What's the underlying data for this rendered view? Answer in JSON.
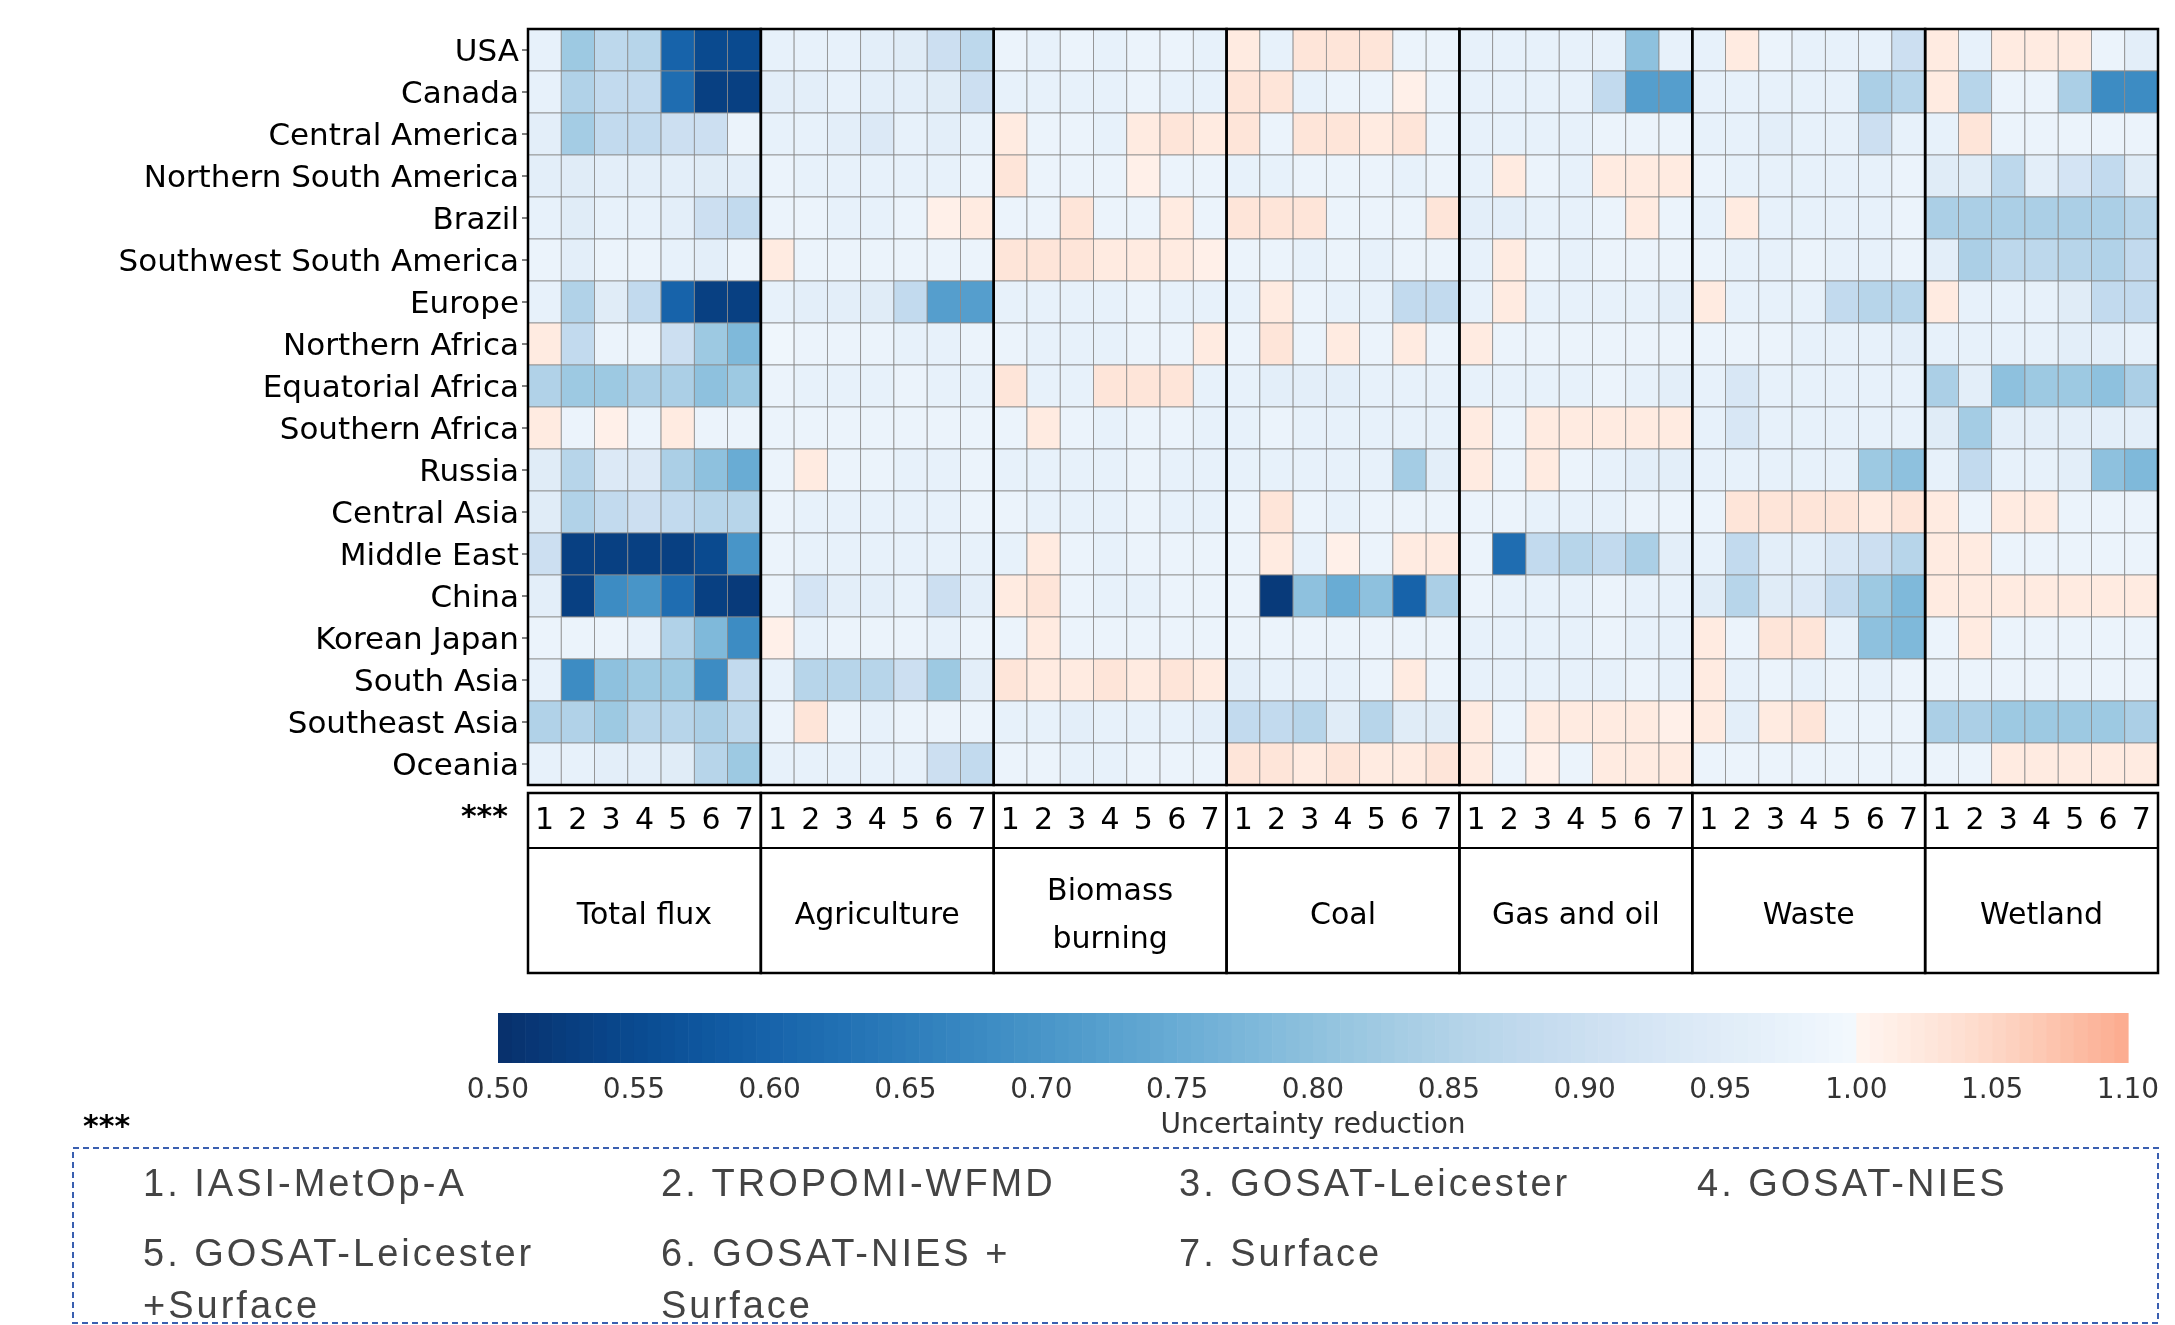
{
  "chart_data": {
    "type": "heatmap",
    "clabel": "Uncertainty reduction",
    "categories": [
      "1",
      "2",
      "3",
      "4",
      "5",
      "6",
      "7",
      "1",
      "2",
      "3",
      "4",
      "5",
      "6",
      "7",
      "1",
      "2",
      "3",
      "4",
      "5",
      "6",
      "7",
      "1",
      "2",
      "3",
      "4",
      "5",
      "6",
      "7",
      "1",
      "2",
      "3",
      "4",
      "5",
      "6",
      "7",
      "1",
      "2",
      "3",
      "4",
      "5",
      "6",
      "7",
      "1",
      "2",
      "3",
      "4",
      "5",
      "6",
      "7"
    ],
    "y_categories": [
      "USA",
      "Canada",
      "Central America",
      "Northern South America",
      "Brazil",
      "Southwest South America",
      "Europe",
      "Northern Africa",
      "Equatorial Africa",
      "Southern Africa",
      "Russia",
      "Central Asia",
      "Middle East",
      "China",
      "Korean Japan",
      "South Asia",
      "Southeast Asia",
      "Oceania"
    ],
    "clim": [
      0.5,
      1.1
    ],
    "cticks": [
      {
        "value": 0.5,
        "label": "0.50"
      },
      {
        "value": 0.55,
        "label": "0.55"
      },
      {
        "value": 0.6,
        "label": "0.60"
      },
      {
        "value": 0.65,
        "label": "0.65"
      },
      {
        "value": 0.7,
        "label": "0.70"
      },
      {
        "value": 0.75,
        "label": "0.75"
      },
      {
        "value": 0.8,
        "label": "0.80"
      },
      {
        "value": 0.85,
        "label": "0.85"
      },
      {
        "value": 0.9,
        "label": "0.90"
      },
      {
        "value": 0.95,
        "label": "0.95"
      },
      {
        "value": 1.0,
        "label": "1.00"
      },
      {
        "value": 1.05,
        "label": "1.05"
      },
      {
        "value": 1.1,
        "label": "1.10"
      }
    ],
    "cells": [
      [
        0.97,
        0.82,
        0.87,
        0.86,
        0.6,
        0.55,
        0.55,
        0.97,
        0.97,
        0.97,
        0.96,
        0.95,
        0.9,
        0.87,
        0.98,
        0.97,
        0.98,
        0.97,
        0.98,
        0.98,
        0.97,
        1.02,
        0.97,
        1.03,
        1.03,
        1.03,
        0.98,
        0.98,
        0.97,
        0.97,
        0.97,
        0.97,
        0.97,
        0.8,
        0.97,
        0.97,
        1.02,
        0.98,
        0.97,
        0.97,
        0.97,
        0.9,
        1.02,
        0.97,
        1.02,
        1.02,
        1.02,
        0.98,
        0.96
      ],
      [
        0.97,
        0.85,
        0.88,
        0.88,
        0.62,
        0.53,
        0.53,
        0.96,
        0.96,
        0.97,
        0.96,
        0.96,
        0.95,
        0.9,
        0.97,
        0.97,
        0.97,
        0.97,
        0.98,
        0.97,
        0.97,
        1.03,
        1.03,
        0.97,
        0.98,
        0.98,
        1.01,
        0.98,
        0.97,
        0.97,
        0.97,
        0.97,
        0.88,
        0.72,
        0.72,
        0.97,
        0.97,
        0.97,
        0.97,
        0.97,
        0.84,
        0.86,
        1.02,
        0.86,
        0.98,
        0.98,
        0.84,
        0.68,
        0.68
      ],
      [
        0.96,
        0.83,
        0.88,
        0.88,
        0.9,
        0.9,
        0.98,
        0.97,
        0.97,
        0.96,
        0.94,
        0.97,
        0.96,
        0.97,
        1.02,
        0.98,
        0.98,
        0.97,
        1.02,
        1.03,
        1.02,
        1.03,
        0.98,
        1.03,
        1.03,
        1.02,
        1.03,
        0.98,
        0.97,
        0.97,
        0.97,
        0.97,
        0.98,
        0.98,
        0.98,
        0.97,
        0.97,
        0.96,
        0.97,
        0.97,
        0.9,
        0.97,
        0.97,
        1.03,
        0.98,
        0.98,
        0.98,
        0.98,
        0.98
      ],
      [
        0.96,
        0.95,
        0.96,
        0.96,
        0.96,
        0.95,
        0.96,
        0.98,
        0.97,
        0.97,
        0.97,
        0.97,
        0.97,
        0.98,
        1.03,
        0.98,
        0.98,
        0.98,
        1.01,
        0.98,
        0.98,
        0.97,
        0.97,
        0.98,
        0.98,
        0.98,
        0.97,
        0.98,
        0.97,
        1.02,
        0.98,
        0.97,
        1.02,
        1.02,
        1.02,
        0.98,
        0.97,
        0.97,
        0.97,
        0.97,
        0.97,
        0.98,
        0.95,
        0.95,
        0.87,
        0.96,
        0.92,
        0.88,
        0.95
      ],
      [
        0.97,
        0.95,
        0.97,
        0.97,
        0.96,
        0.9,
        0.88,
        0.98,
        0.98,
        0.97,
        0.97,
        0.98,
        1.01,
        1.02,
        0.98,
        0.98,
        1.03,
        0.98,
        0.98,
        1.02,
        0.98,
        1.03,
        1.03,
        1.03,
        0.98,
        0.98,
        0.98,
        1.03,
        0.96,
        0.96,
        0.97,
        0.97,
        0.98,
        1.02,
        0.98,
        0.97,
        1.02,
        0.97,
        0.97,
        0.97,
        0.97,
        0.98,
        0.84,
        0.84,
        0.84,
        0.84,
        0.84,
        0.84,
        0.86
      ],
      [
        0.98,
        0.96,
        0.98,
        0.98,
        0.97,
        0.96,
        0.98,
        1.02,
        0.98,
        0.98,
        0.98,
        0.98,
        0.98,
        0.98,
        1.03,
        1.03,
        1.03,
        1.02,
        1.02,
        1.02,
        1.01,
        0.98,
        0.98,
        0.97,
        0.98,
        0.97,
        0.98,
        0.98,
        0.97,
        1.02,
        0.98,
        0.97,
        0.98,
        0.98,
        0.98,
        0.98,
        0.97,
        0.97,
        0.98,
        0.97,
        0.97,
        0.98,
        0.96,
        0.84,
        0.87,
        0.87,
        0.86,
        0.85,
        0.88
      ],
      [
        0.97,
        0.85,
        0.95,
        0.88,
        0.6,
        0.53,
        0.53,
        0.97,
        0.96,
        0.96,
        0.95,
        0.88,
        0.72,
        0.72,
        0.97,
        0.97,
        0.97,
        0.97,
        0.98,
        0.97,
        0.97,
        0.97,
        1.02,
        0.98,
        0.97,
        0.97,
        0.88,
        0.88,
        0.97,
        1.02,
        0.97,
        0.97,
        0.97,
        0.97,
        0.96,
        1.02,
        0.97,
        0.97,
        0.97,
        0.88,
        0.86,
        0.86,
        1.02,
        0.97,
        0.97,
        0.97,
        0.95,
        0.88,
        0.88
      ],
      [
        1.02,
        0.88,
        0.98,
        0.98,
        0.9,
        0.82,
        0.78,
        0.99,
        0.98,
        0.98,
        0.98,
        0.97,
        0.97,
        0.98,
        0.98,
        0.97,
        0.97,
        0.97,
        0.98,
        0.98,
        1.02,
        0.98,
        1.03,
        0.98,
        1.02,
        0.98,
        1.02,
        0.98,
        1.02,
        0.98,
        0.98,
        0.98,
        0.98,
        0.98,
        0.98,
        0.98,
        0.98,
        0.98,
        0.97,
        0.97,
        0.97,
        0.96,
        0.97,
        0.97,
        0.97,
        0.97,
        0.96,
        0.96,
        0.97
      ],
      [
        0.85,
        0.82,
        0.82,
        0.84,
        0.84,
        0.8,
        0.82,
        0.98,
        0.97,
        0.97,
        0.97,
        0.98,
        0.97,
        0.97,
        1.03,
        0.97,
        0.97,
        1.03,
        1.03,
        1.03,
        0.97,
        0.97,
        0.96,
        0.96,
        0.96,
        0.97,
        0.97,
        0.97,
        0.97,
        0.97,
        0.97,
        0.97,
        0.98,
        0.97,
        0.96,
        0.97,
        0.93,
        0.97,
        0.97,
        0.97,
        0.97,
        0.97,
        0.84,
        0.96,
        0.8,
        0.82,
        0.82,
        0.8,
        0.84
      ],
      [
        1.02,
        0.98,
        1.01,
        0.98,
        1.02,
        0.98,
        0.98,
        0.98,
        0.98,
        0.98,
        0.98,
        0.98,
        0.98,
        0.98,
        0.98,
        1.02,
        0.98,
        0.97,
        0.98,
        0.98,
        0.97,
        0.97,
        0.98,
        0.97,
        0.97,
        0.97,
        0.97,
        0.97,
        1.02,
        0.98,
        1.02,
        1.02,
        1.02,
        1.02,
        1.02,
        0.97,
        0.93,
        0.97,
        0.97,
        0.97,
        0.97,
        0.97,
        0.95,
        0.83,
        0.96,
        0.96,
        0.96,
        0.96,
        0.96
      ],
      [
        0.95,
        0.86,
        0.94,
        0.94,
        0.84,
        0.8,
        0.75,
        0.98,
        1.02,
        0.98,
        0.98,
        0.97,
        0.97,
        0.98,
        0.97,
        0.97,
        0.97,
        0.97,
        0.98,
        0.97,
        0.97,
        0.97,
        0.97,
        0.97,
        0.97,
        0.97,
        0.83,
        0.96,
        1.02,
        0.98,
        1.02,
        0.98,
        0.97,
        0.96,
        0.96,
        0.97,
        0.97,
        0.97,
        0.97,
        0.97,
        0.82,
        0.8,
        0.97,
        0.88,
        0.97,
        0.97,
        0.96,
        0.8,
        0.78
      ],
      [
        0.95,
        0.85,
        0.88,
        0.9,
        0.88,
        0.86,
        0.86,
        0.98,
        0.97,
        0.97,
        0.97,
        0.97,
        0.97,
        0.98,
        0.98,
        0.97,
        0.97,
        0.97,
        0.98,
        0.97,
        0.97,
        0.98,
        1.03,
        0.98,
        0.97,
        0.98,
        0.98,
        0.98,
        0.98,
        0.98,
        0.97,
        0.97,
        0.97,
        0.98,
        0.98,
        0.98,
        1.03,
        1.03,
        1.03,
        1.03,
        1.02,
        1.03,
        1.02,
        0.98,
        1.02,
        1.02,
        0.98,
        0.98,
        0.98
      ],
      [
        0.9,
        0.53,
        0.53,
        0.53,
        0.53,
        0.55,
        0.7,
        0.98,
        0.97,
        0.97,
        0.97,
        0.97,
        0.97,
        0.97,
        0.97,
        1.02,
        0.98,
        0.97,
        0.98,
        0.98,
        0.98,
        0.98,
        1.02,
        0.97,
        1.01,
        0.98,
        1.02,
        1.02,
        0.98,
        0.62,
        0.88,
        0.86,
        0.88,
        0.84,
        0.96,
        0.97,
        0.88,
        0.96,
        0.96,
        0.93,
        0.9,
        0.86,
        1.02,
        1.02,
        0.98,
        0.98,
        0.98,
        0.98,
        0.98
      ],
      [
        0.96,
        0.53,
        0.68,
        0.7,
        0.62,
        0.53,
        0.52,
        0.98,
        0.92,
        0.96,
        0.96,
        0.97,
        0.9,
        0.96,
        1.02,
        1.03,
        0.98,
        0.97,
        0.97,
        0.98,
        0.98,
        0.98,
        0.52,
        0.8,
        0.75,
        0.8,
        0.6,
        0.84,
        0.98,
        0.97,
        0.97,
        0.97,
        0.98,
        0.97,
        0.97,
        0.95,
        0.86,
        0.95,
        0.94,
        0.88,
        0.82,
        0.78,
        1.02,
        1.02,
        1.02,
        1.02,
        1.02,
        1.02,
        1.02
      ],
      [
        0.98,
        0.98,
        0.98,
        0.97,
        0.85,
        0.78,
        0.68,
        1.01,
        0.97,
        0.98,
        0.98,
        0.98,
        0.97,
        0.98,
        0.98,
        1.02,
        0.98,
        0.98,
        0.98,
        0.98,
        0.98,
        0.98,
        0.98,
        0.98,
        0.98,
        0.98,
        0.98,
        0.98,
        0.97,
        0.97,
        0.97,
        0.97,
        0.98,
        0.97,
        0.97,
        1.02,
        0.98,
        1.03,
        1.03,
        0.97,
        0.8,
        0.78,
        0.98,
        1.02,
        0.98,
        0.98,
        0.98,
        0.98,
        0.98
      ],
      [
        0.97,
        0.68,
        0.8,
        0.82,
        0.82,
        0.68,
        0.88,
        0.97,
        0.86,
        0.86,
        0.86,
        0.9,
        0.82,
        0.96,
        1.03,
        1.02,
        1.02,
        1.03,
        1.02,
        1.03,
        1.02,
        0.96,
        0.97,
        0.97,
        0.97,
        0.98,
        1.02,
        0.98,
        0.97,
        0.97,
        0.97,
        0.97,
        0.97,
        0.98,
        0.97,
        1.02,
        0.97,
        0.98,
        0.97,
        0.98,
        0.97,
        0.98,
        0.98,
        0.98,
        0.98,
        0.98,
        0.98,
        0.98,
        0.98
      ],
      [
        0.85,
        0.85,
        0.82,
        0.86,
        0.86,
        0.84,
        0.87,
        0.98,
        1.03,
        0.98,
        0.97,
        0.98,
        0.98,
        0.98,
        0.97,
        0.97,
        0.96,
        0.97,
        0.97,
        0.97,
        0.96,
        0.88,
        0.88,
        0.86,
        0.95,
        0.86,
        0.95,
        0.95,
        1.02,
        0.98,
        1.02,
        1.02,
        1.02,
        1.02,
        1.01,
        1.02,
        0.96,
        1.02,
        1.03,
        0.98,
        0.98,
        0.98,
        0.84,
        0.84,
        0.82,
        0.82,
        0.82,
        0.82,
        0.84
      ],
      [
        0.97,
        0.97,
        0.96,
        0.96,
        0.95,
        0.86,
        0.82,
        0.97,
        0.97,
        0.97,
        0.97,
        0.97,
        0.9,
        0.88,
        0.98,
        0.98,
        0.97,
        0.97,
        0.98,
        0.98,
        0.98,
        1.03,
        1.03,
        1.02,
        1.03,
        1.02,
        1.02,
        1.03,
        1.02,
        0.98,
        1.01,
        0.98,
        1.02,
        1.02,
        1.02,
        0.98,
        0.98,
        0.98,
        0.98,
        0.98,
        0.98,
        0.98,
        0.98,
        0.98,
        1.02,
        1.02,
        1.02,
        1.02,
        1.02
      ]
    ],
    "annotations": [
      "Total flux",
      "Agriculture",
      "Biomass burning",
      "Coal",
      "Gas and oil",
      "Waste",
      "Wetland",
      "***",
      "***",
      "1. IASI-MetOp-A",
      "2. TROPOMI-WFMD",
      "3. GOSAT-Leicester",
      "4. GOSAT-NIES",
      "5. GOSAT-Leicester +Surface",
      "6. GOSAT-NIES + Surface",
      "7. Surface"
    ]
  }
}
